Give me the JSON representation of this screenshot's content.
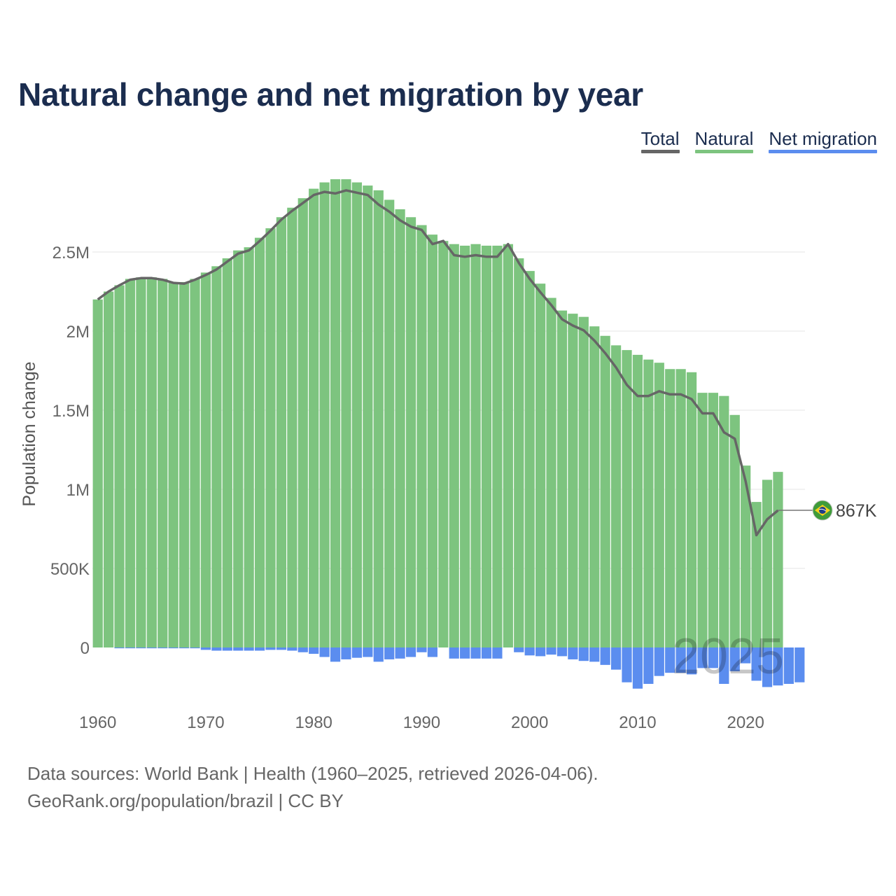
{
  "title": "Natural change and net migration by year",
  "legend": [
    {
      "key": "total",
      "label": "Total",
      "color": "#666666"
    },
    {
      "key": "natural",
      "label": "Natural",
      "color": "#7dc47f"
    },
    {
      "key": "net_migration",
      "label": "Net migration",
      "color": "#5b8def"
    }
  ],
  "endpoint": {
    "label": "867K",
    "country_icon": "brazil-flag-icon"
  },
  "watermark_year": "2025",
  "footer": {
    "line1": "Data sources: World Bank | Health (1960–2025, retrieved 2026-04-06).",
    "line2": "GeoRank.org/population/brazil | CC BY"
  },
  "chart_data": {
    "type": "bar",
    "ylabel": "Population change",
    "xlabel": "",
    "ylim": [
      -300000,
      3000000
    ],
    "xlim": [
      1959.5,
      2025.5
    ],
    "yticks": [
      {
        "value": 0,
        "label": "0"
      },
      {
        "value": 500000,
        "label": "500K"
      },
      {
        "value": 1000000,
        "label": "1M"
      },
      {
        "value": 1500000,
        "label": "1.5M"
      },
      {
        "value": 2000000,
        "label": "2M"
      },
      {
        "value": 2500000,
        "label": "2.5M"
      }
    ],
    "xticks": [
      1960,
      1970,
      1980,
      1990,
      2000,
      2010,
      2020
    ],
    "grid": true,
    "legend_position": "top-right",
    "colors": {
      "natural": "#7dc47f",
      "net_migration": "#5b8def",
      "total": "#666666"
    },
    "years": [
      1960,
      1961,
      1962,
      1963,
      1964,
      1965,
      1966,
      1967,
      1968,
      1969,
      1970,
      1971,
      1972,
      1973,
      1974,
      1975,
      1976,
      1977,
      1978,
      1979,
      1980,
      1981,
      1982,
      1983,
      1984,
      1985,
      1986,
      1987,
      1988,
      1989,
      1990,
      1991,
      1992,
      1993,
      1994,
      1995,
      1996,
      1997,
      1998,
      1999,
      2000,
      2001,
      2002,
      2003,
      2004,
      2005,
      2006,
      2007,
      2008,
      2009,
      2010,
      2011,
      2012,
      2013,
      2014,
      2015,
      2016,
      2017,
      2018,
      2019,
      2020,
      2021,
      2022,
      2023,
      2024,
      2025
    ],
    "series": [
      {
        "name": "Natural",
        "key": "natural",
        "values": [
          2200000,
          2250000,
          2290000,
          2330000,
          2340000,
          2340000,
          2330000,
          2310000,
          2310000,
          2330000,
          2370000,
          2410000,
          2460000,
          2510000,
          2530000,
          2590000,
          2650000,
          2720000,
          2780000,
          2840000,
          2900000,
          2940000,
          2960000,
          2960000,
          2940000,
          2920000,
          2890000,
          2830000,
          2770000,
          2720000,
          2670000,
          2610000,
          2570000,
          2550000,
          2540000,
          2550000,
          2540000,
          2540000,
          2550000,
          2460000,
          2380000,
          2300000,
          2210000,
          2130000,
          2110000,
          2090000,
          2030000,
          1970000,
          1910000,
          1880000,
          1850000,
          1820000,
          1800000,
          1760000,
          1760000,
          1740000,
          1610000,
          1610000,
          1590000,
          1470000,
          1150000,
          920000,
          1060000,
          1110000,
          null,
          null
        ]
      },
      {
        "name": "Net migration",
        "key": "net_migration",
        "values": [
          0,
          0,
          -5000,
          -5000,
          -5000,
          -5000,
          -5000,
          -5000,
          -5000,
          -5000,
          -15000,
          -20000,
          -20000,
          -20000,
          -20000,
          -20000,
          -15000,
          -15000,
          -20000,
          -30000,
          -40000,
          -60000,
          -90000,
          -75000,
          -65000,
          -60000,
          -90000,
          -75000,
          -70000,
          -60000,
          -30000,
          -60000,
          0,
          -70000,
          -70000,
          -70000,
          -70000,
          -70000,
          0,
          -30000,
          -50000,
          -55000,
          -45000,
          -55000,
          -75000,
          -85000,
          -90000,
          -110000,
          -140000,
          -220000,
          -260000,
          -230000,
          -180000,
          -160000,
          -160000,
          -170000,
          -130000,
          -130000,
          -230000,
          -150000,
          -100000,
          -210000,
          -250000,
          -240000,
          -230000,
          -220000
        ]
      },
      {
        "name": "Total",
        "key": "total",
        "values": [
          2200000,
          2250000,
          2290000,
          2325000,
          2335000,
          2335000,
          2325000,
          2305000,
          2300000,
          2325000,
          2355000,
          2390000,
          2440000,
          2490000,
          2510000,
          2570000,
          2635000,
          2705000,
          2760000,
          2810000,
          2860000,
          2880000,
          2870000,
          2890000,
          2875000,
          2860000,
          2800000,
          2755000,
          2700000,
          2660000,
          2640000,
          2550000,
          2570000,
          2480000,
          2470000,
          2480000,
          2470000,
          2470000,
          2550000,
          2430000,
          2330000,
          2245000,
          2165000,
          2075000,
          2035000,
          2005000,
          1940000,
          1860000,
          1770000,
          1660000,
          1590000,
          1590000,
          1620000,
          1600000,
          1600000,
          1570000,
          1480000,
          1480000,
          1360000,
          1320000,
          1050000,
          710000,
          810000,
          867000,
          null,
          null
        ]
      }
    ]
  }
}
